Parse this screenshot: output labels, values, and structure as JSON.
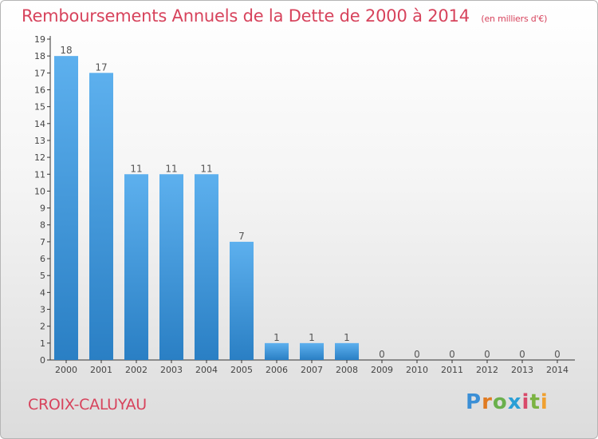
{
  "header": {
    "title": "Remboursements Annuels de la Dette de 2000 à 2014",
    "subtitle": "(en milliers d'€)"
  },
  "footer": {
    "commune": "CROIX-CALUYAU",
    "logo_letters": [
      "P",
      "r",
      "o",
      "x",
      "i",
      "t",
      "i"
    ],
    "logo_colors": [
      "#3b8fd6",
      "#e07b22",
      "#6ab04c",
      "#2a9fd6",
      "#d84a6a",
      "#7cb342",
      "#f0a030"
    ]
  },
  "chart_data": {
    "type": "bar",
    "title": "Remboursements Annuels de la Dette de 2000 à 2014",
    "subtitle": "(en milliers d'€)",
    "categories": [
      "2000",
      "2001",
      "2002",
      "2003",
      "2004",
      "2005",
      "2006",
      "2007",
      "2008",
      "2009",
      "2010",
      "2011",
      "2012",
      "2013",
      "2014"
    ],
    "values": [
      18,
      17,
      11,
      11,
      11,
      7,
      1,
      1,
      1,
      0,
      0,
      0,
      0,
      0,
      0
    ],
    "ylim": [
      0,
      19
    ],
    "yticks": [
      "0",
      "1",
      "2",
      "3",
      "4",
      "5",
      "6",
      "7",
      "8",
      "9",
      "10",
      "11",
      "12",
      "13",
      "14",
      "15",
      "16",
      "17",
      "18",
      "19"
    ],
    "xlabel": "",
    "ylabel": "",
    "bar_color": "#4da3e6",
    "grid": false
  }
}
